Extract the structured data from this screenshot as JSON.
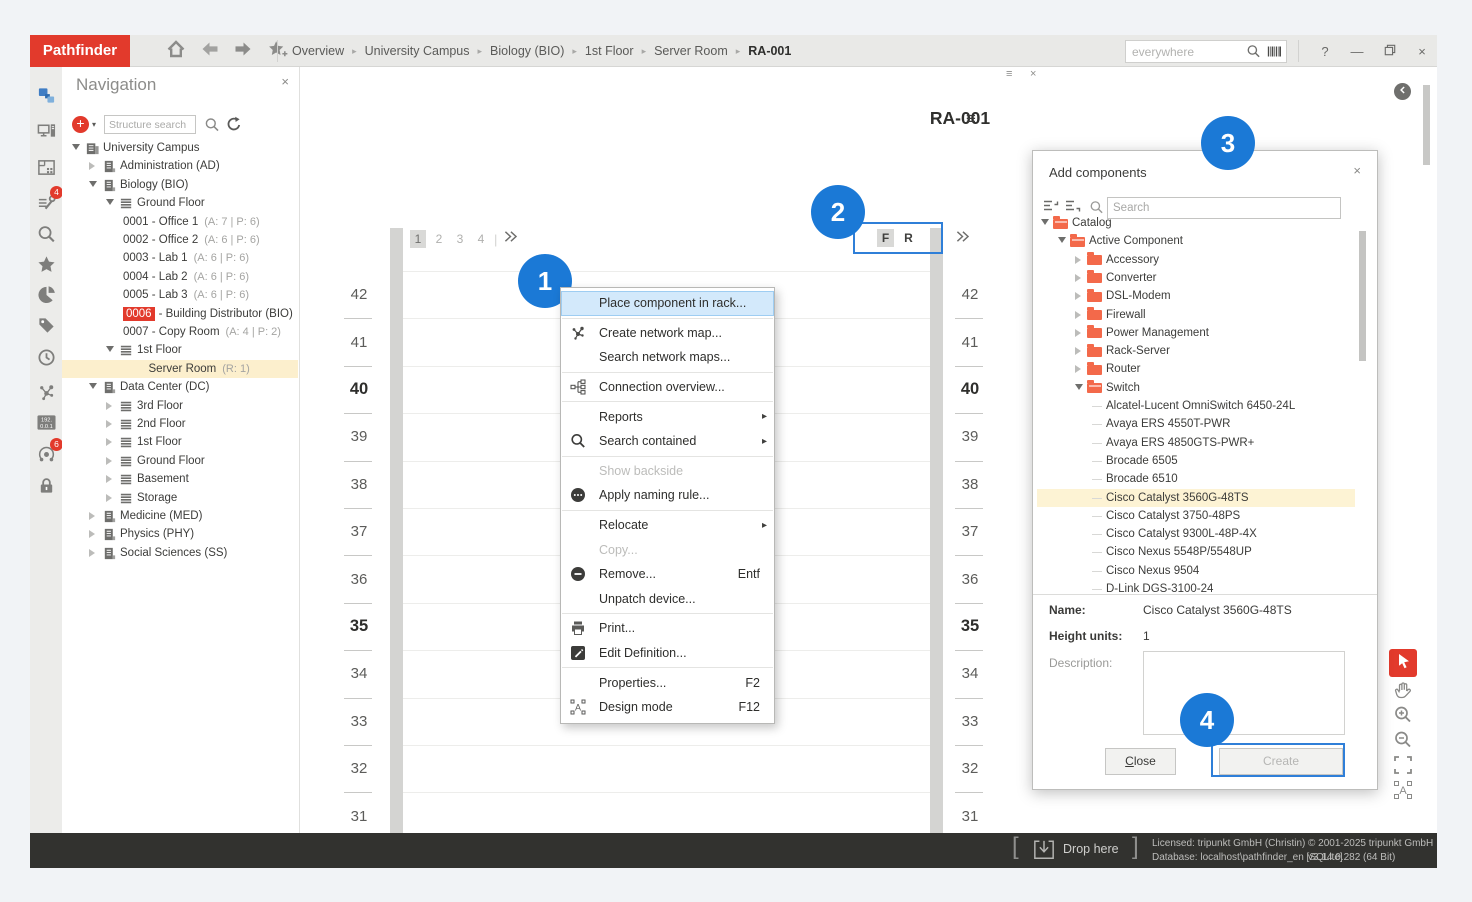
{
  "topbar": {
    "brand": "Pathfinder",
    "breadcrumb": [
      "Overview",
      "University Campus",
      "Biology (BIO)",
      "1st Floor",
      "Server Room",
      "RA-001"
    ],
    "search_placeholder": "everywhere",
    "help": "?"
  },
  "sidebar": {
    "items": [
      {
        "icon": "nav-tree",
        "active": true
      },
      {
        "icon": "workstation"
      },
      {
        "icon": "floorplan"
      },
      {
        "icon": "tools",
        "badge": "4"
      },
      {
        "icon": "search"
      },
      {
        "icon": "favorites"
      },
      {
        "icon": "pie-chart"
      },
      {
        "icon": "tag"
      },
      {
        "icon": "history"
      },
      {
        "icon": "network-map"
      },
      {
        "icon": "ip-address"
      },
      {
        "icon": "monitoring",
        "badge": "6"
      },
      {
        "icon": "lock"
      }
    ]
  },
  "navigation": {
    "title": "Navigation",
    "search_placeholder": "Structure search",
    "tree": [
      {
        "label": "University Campus",
        "lv": 0,
        "ex": "o",
        "ic": "campus"
      },
      {
        "label": "Administration (AD)",
        "lv": 1,
        "ex": "c",
        "ic": "dept"
      },
      {
        "label": "Biology (BIO)",
        "lv": 1,
        "ex": "o",
        "ic": "dept"
      },
      {
        "label": "Ground Floor",
        "lv": 2,
        "ex": "o",
        "ic": "floor"
      },
      {
        "label": "0001 - Office 1",
        "suffix": "(A: 7 | P: 6)",
        "lv": 3
      },
      {
        "label": "0002 - Office 2",
        "suffix": "(A: 6 | P: 6)",
        "lv": 3
      },
      {
        "label": "0003 - Lab 1",
        "suffix": "(A: 6 | P: 6)",
        "lv": 3
      },
      {
        "label": "0004 - Lab 2",
        "suffix": "(A: 6 | P: 6)",
        "lv": 3
      },
      {
        "label": "0005 - Lab 3",
        "suffix": "(A: 6 | P: 6)",
        "lv": 3
      },
      {
        "badge": "0006",
        "label": "- Building Distributor (BIO)",
        "lv": 3
      },
      {
        "label": "0007 - Copy Room",
        "suffix": "(A: 4 | P: 2)",
        "lv": 3
      },
      {
        "label": "1st Floor",
        "lv": 2,
        "ex": "o",
        "ic": "floor"
      },
      {
        "label": "Server Room",
        "suffix": "(R: 1)",
        "lv": 4.5,
        "selected": true
      },
      {
        "label": "Data Center (DC)",
        "lv": 1,
        "ex": "o",
        "ic": "dept"
      },
      {
        "label": "3rd Floor",
        "lv": 2,
        "ex": "c",
        "ic": "floor"
      },
      {
        "label": "2nd Floor",
        "lv": 2,
        "ex": "c",
        "ic": "floor"
      },
      {
        "label": "1st Floor",
        "lv": 2,
        "ex": "c",
        "ic": "floor"
      },
      {
        "label": "Ground Floor",
        "lv": 2,
        "ex": "c",
        "ic": "floor"
      },
      {
        "label": "Basement",
        "lv": 2,
        "ex": "c",
        "ic": "floor"
      },
      {
        "label": "Storage",
        "lv": 2,
        "ex": "c",
        "ic": "floor"
      },
      {
        "label": "Medicine (MED)",
        "lv": 1,
        "ex": "c",
        "ic": "dept"
      },
      {
        "label": "Physics (PHY)",
        "lv": 1,
        "ex": "c",
        "ic": "dept"
      },
      {
        "label": "Social Sciences (SS)",
        "lv": 1,
        "ex": "c",
        "ic": "dept"
      }
    ]
  },
  "rack_view": {
    "title": "RA-001",
    "pages": [
      "1",
      "2",
      "3",
      "4"
    ],
    "active_page": "1",
    "front_label": "F",
    "rear_label": "R",
    "units": [
      42,
      41,
      40,
      39,
      38,
      37,
      36,
      35,
      34,
      33,
      32,
      31
    ]
  },
  "view_tools": [
    {
      "icon": "cursor",
      "active": true
    },
    {
      "icon": "hand"
    },
    {
      "icon": "zoom-in"
    },
    {
      "icon": "zoom-out"
    },
    {
      "icon": "fit-view"
    },
    {
      "icon": "design-mode"
    }
  ],
  "context_menu": {
    "items": [
      {
        "label": "Place component in rack...",
        "hl": true,
        "sep": true
      },
      {
        "label": "Create network map...",
        "icon": "network"
      },
      {
        "label": "Search network maps...",
        "sep": true
      },
      {
        "label": "Connection overview...",
        "icon": "orgchart",
        "sep": true
      },
      {
        "label": "Reports",
        "sub": true
      },
      {
        "label": "Search contained",
        "icon": "msearch",
        "sub": true,
        "sep": true
      },
      {
        "label": "Show backside",
        "dis": true
      },
      {
        "label": "Apply naming rule...",
        "icon": "ellipsis",
        "sep": true
      },
      {
        "label": "Relocate",
        "sub": true
      },
      {
        "label": "Copy...",
        "dis": true
      },
      {
        "label": "Remove...",
        "icon": "minus",
        "shortcut": "Entf"
      },
      {
        "label": "Unpatch device...",
        "sep": true
      },
      {
        "label": "Print...",
        "icon": "printer"
      },
      {
        "label": "Edit Definition...",
        "icon": "pencil",
        "sep": true
      },
      {
        "label": "Properties...",
        "shortcut": "F2"
      },
      {
        "label": "Design mode",
        "icon": "design",
        "shortcut": "F12"
      }
    ]
  },
  "add_components": {
    "title": "Add components",
    "search_placeholder": "Search",
    "tree": [
      {
        "label": "Catalog",
        "lv": 0,
        "ex": "o",
        "ic": "fo"
      },
      {
        "label": "Active Component",
        "lv": 1,
        "ex": "o",
        "ic": "fo"
      },
      {
        "label": "Accessory",
        "lv": 2,
        "ex": "c",
        "ic": "fc"
      },
      {
        "label": "Converter",
        "lv": 2,
        "ex": "c",
        "ic": "fc"
      },
      {
        "label": "DSL-Modem",
        "lv": 2,
        "ex": "c",
        "ic": "fc"
      },
      {
        "label": "Firewall",
        "lv": 2,
        "ex": "c",
        "ic": "fc"
      },
      {
        "label": "Power Management",
        "lv": 2,
        "ex": "c",
        "ic": "fc"
      },
      {
        "label": "Rack-Server",
        "lv": 2,
        "ex": "c",
        "ic": "fc"
      },
      {
        "label": "Router",
        "lv": 2,
        "ex": "c",
        "ic": "fc"
      },
      {
        "label": "Switch",
        "lv": 2,
        "ex": "o",
        "ic": "fo"
      },
      {
        "label": "Alcatel-Lucent OmniSwitch 6450-24L",
        "lv": 3,
        "leaf": true
      },
      {
        "label": "Avaya ERS 4550T-PWR",
        "lv": 3,
        "leaf": true
      },
      {
        "label": "Avaya ERS 4850GTS-PWR+",
        "lv": 3,
        "leaf": true
      },
      {
        "label": "Brocade 6505",
        "lv": 3,
        "leaf": true
      },
      {
        "label": "Brocade 6510",
        "lv": 3,
        "leaf": true
      },
      {
        "label": "Cisco Catalyst 3560G-48TS",
        "lv": 3,
        "leaf": true,
        "selected": true
      },
      {
        "label": "Cisco Catalyst 3750-48PS",
        "lv": 3,
        "leaf": true
      },
      {
        "label": "Cisco Catalyst 9300L-48P-4X",
        "lv": 3,
        "leaf": true
      },
      {
        "label": "Cisco Nexus 5548P/5548UP",
        "lv": 3,
        "leaf": true
      },
      {
        "label": "Cisco Nexus 9504",
        "lv": 3,
        "leaf": true
      },
      {
        "label": "D-Link DGS-3100-24",
        "lv": 3,
        "leaf": true
      }
    ],
    "details": {
      "name_label": "Name:",
      "name_value": "Cisco Catalyst 3560G-48TS",
      "height_label": "Height units:",
      "height_value": "1",
      "description_label": "Description:"
    },
    "close_mnemonic": "C",
    "close_rest": "lose",
    "create_label": "Create"
  },
  "annotations": [
    "1",
    "2",
    "3",
    "4"
  ],
  "status_bar": {
    "drop_label": "Drop here",
    "licensed": "Licensed: tripunkt GmbH (Christin)",
    "database": "Database: localhost\\pathfinder_en [SQLite]",
    "copyright": "© 2001-2025 tripunkt GmbH",
    "version": "v3.14.0.282 (64 Bit)"
  },
  "colors": {
    "accent_red": "#e23a2c",
    "annotation_blue": "#1b79d6",
    "folder_orange": "#f3694a",
    "selection_yellow": "#fcefcd",
    "menu_highlight": "#d3e9fb"
  }
}
